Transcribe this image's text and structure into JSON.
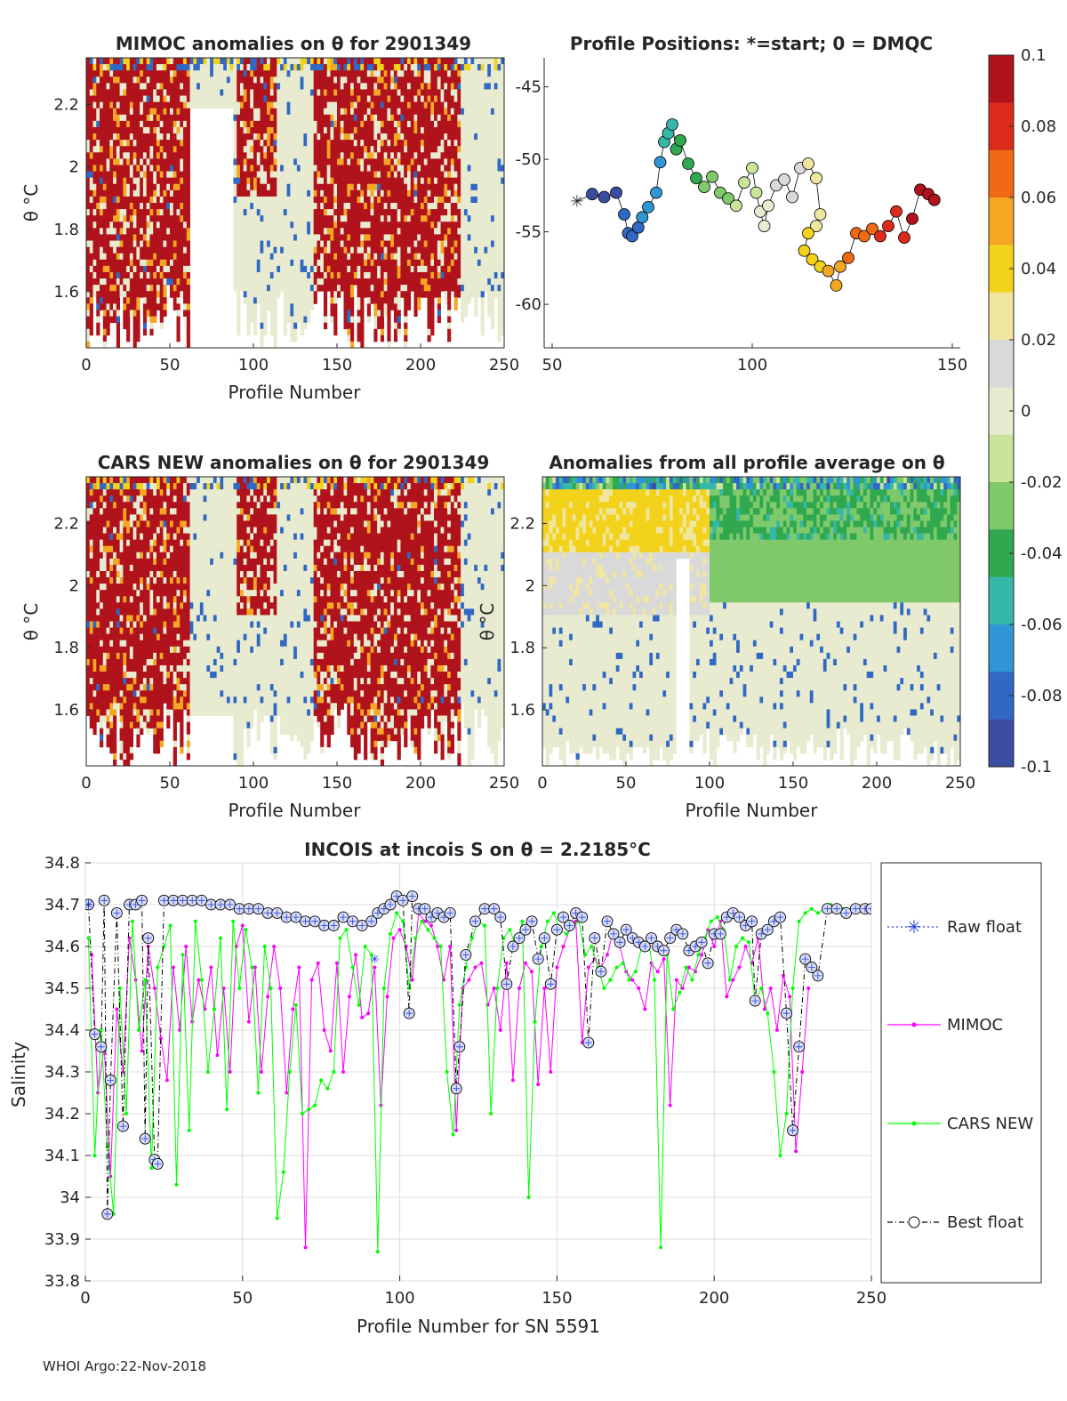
{
  "colors": {
    "background": "#ffffff",
    "axis": "#262626",
    "grid": "#dcdcdc",
    "raw_float": "#1f3fe0",
    "mimoc": "#ff00ff",
    "cars_new": "#00ff00",
    "best_float": "#000000",
    "colormap": [
      "#3b4da0",
      "#3068c4",
      "#2f95d4",
      "#35b8a8",
      "#2fa84f",
      "#7fc96a",
      "#cbe49b",
      "#e8ebd0",
      "#d9d9d9",
      "#f0e6a0",
      "#f3d21c",
      "#f5a623",
      "#ef6a12",
      "#dc2b1b",
      "#b0131b"
    ]
  },
  "footer": "WHOI Argo:22-Nov-2018",
  "chart_data": [
    {
      "id": "mimoc",
      "type": "heatmap",
      "title": "MIMOC anomalies on θ  for 2901349",
      "xlabel": "Profile Number",
      "ylabel": "θ °C",
      "xlim": [
        0,
        250
      ],
      "ylim": [
        1.42,
        2.35
      ],
      "xticks": [
        "0",
        "50",
        "100",
        "150",
        "200",
        "250"
      ],
      "yticks": [
        "1.6",
        "1.8",
        "2",
        "2.2"
      ],
      "ytick_values": [
        1.6,
        1.8,
        2.0,
        2.2
      ],
      "clim": [
        -0.1,
        0.1
      ]
    },
    {
      "id": "positions",
      "type": "scatter",
      "title": "Profile Positions: *=start; 0 = DMQC",
      "xlim": [
        48,
        152
      ],
      "ylim": [
        -63,
        -43
      ],
      "xticks": [
        "50",
        "100",
        "150"
      ],
      "xtick_values": [
        50,
        100,
        150
      ],
      "yticks": [
        "-45",
        "-50",
        "-55",
        "-60"
      ],
      "ytick_values": [
        -45,
        -50,
        -55,
        -60
      ],
      "track_lon": [
        56.2,
        60,
        63,
        66,
        68,
        69,
        70,
        71.5,
        72.5,
        74,
        76,
        77,
        78,
        79,
        80,
        81,
        82,
        84,
        86,
        88,
        90,
        92,
        94,
        96,
        98,
        100,
        101,
        102,
        103,
        104,
        106,
        108,
        110,
        112,
        114,
        116,
        117,
        116,
        114,
        113,
        115,
        117,
        119,
        121,
        122,
        124,
        126,
        128,
        130,
        132,
        134,
        136,
        138,
        140,
        142,
        144,
        145.5
      ],
      "track_lat": [
        -52.9,
        -52.4,
        -52.6,
        -52.3,
        -53.8,
        -55.1,
        -55.3,
        -54.7,
        -54,
        -53.3,
        -52.3,
        -50.2,
        -48.8,
        -48.2,
        -47.6,
        -49.3,
        -48.7,
        -50.3,
        -51.3,
        -51.9,
        -51.2,
        -52.3,
        -52.7,
        -53.2,
        -51.6,
        -50.6,
        -52.3,
        -53.6,
        -54.6,
        -53.2,
        -51.8,
        -51.4,
        -52.6,
        -50.6,
        -50.3,
        -51.3,
        -53.8,
        -54.6,
        -55.1,
        -56.3,
        -56.9,
        -57.4,
        -57.7,
        -58.7,
        -57.4,
        -56.8,
        -55.1,
        -55.3,
        -54.8,
        -55.3,
        -54.6,
        -53.6,
        -55.4,
        -54.1,
        -52.1,
        -52.4,
        -52.8
      ]
    },
    {
      "id": "cars",
      "type": "heatmap",
      "title": "CARS NEW anomalies on θ for 2901349",
      "xlabel": "Profile Number",
      "ylabel": "θ °C",
      "xlim": [
        0,
        250
      ],
      "ylim": [
        1.42,
        2.35
      ],
      "xticks": [
        "0",
        "50",
        "100",
        "150",
        "200",
        "250"
      ],
      "yticks": [
        "1.6",
        "1.8",
        "2",
        "2.2"
      ],
      "ytick_values": [
        1.6,
        1.8,
        2.0,
        2.2
      ]
    },
    {
      "id": "average",
      "type": "heatmap",
      "title": "Anomalies from all profile average on θ",
      "xlabel": "Profile Number",
      "ylabel": "θ °C",
      "xlim": [
        0,
        250
      ],
      "ylim": [
        1.42,
        2.35
      ],
      "xticks": [
        "0",
        "50",
        "100",
        "150",
        "200",
        "250"
      ],
      "yticks": [
        "1.6",
        "1.8",
        "2",
        "2.2"
      ],
      "ytick_values": [
        1.6,
        1.8,
        2.0,
        2.2
      ]
    },
    {
      "id": "colorbar",
      "type": "colorbar",
      "ticks": [
        "0.1",
        "0.08",
        "0.06",
        "0.04",
        "0.02",
        "0",
        "-0.02",
        "-0.04",
        "-0.06",
        "-0.08",
        "-0.1"
      ],
      "tick_values": [
        0.1,
        0.08,
        0.06,
        0.04,
        0.02,
        0,
        -0.02,
        -0.04,
        -0.06,
        -0.08,
        -0.1
      ],
      "clim": [
        -0.1,
        0.1
      ]
    },
    {
      "id": "salinity",
      "type": "line",
      "title": "INCOIS at incois S on θ = 2.2185°C",
      "xlabel": "Profile Number for SN 5591",
      "ylabel": "Salinity",
      "xlim": [
        0,
        250
      ],
      "ylim": [
        33.8,
        34.8
      ],
      "xticks": [
        "0",
        "50",
        "100",
        "150",
        "200",
        "250"
      ],
      "xtick_values": [
        0,
        50,
        100,
        150,
        200,
        250
      ],
      "yticks": [
        "33.8",
        "33.9",
        "34",
        "34.1",
        "34.2",
        "34.3",
        "34.4",
        "34.5",
        "34.6",
        "34.7",
        "34.8"
      ],
      "ytick_values": [
        33.8,
        33.9,
        34.0,
        34.1,
        34.2,
        34.3,
        34.4,
        34.5,
        34.6,
        34.7,
        34.8
      ],
      "legend": [
        "Raw float",
        "MIMOC",
        "CARS NEW",
        "Best float"
      ],
      "series": [
        {
          "name": "Best float",
          "x": [
            1,
            3,
            5,
            6,
            7,
            8,
            10,
            12,
            14,
            16,
            18,
            19,
            20,
            22,
            23,
            25,
            28,
            31,
            34,
            37,
            40,
            43,
            46,
            49,
            52,
            55,
            58,
            61,
            64,
            67,
            70,
            73,
            76,
            79,
            82,
            85,
            88,
            91,
            93,
            95,
            97,
            99,
            101,
            103,
            104,
            106,
            108,
            110,
            112,
            114,
            116,
            118,
            119,
            121,
            124,
            127,
            130,
            132,
            134,
            136,
            138,
            140,
            142,
            144,
            146,
            148,
            150,
            152,
            154,
            156,
            158,
            160,
            162,
            164,
            166,
            168,
            170,
            172,
            174,
            176,
            178,
            180,
            182,
            184,
            186,
            188,
            190,
            192,
            194,
            196,
            198,
            200,
            202,
            204,
            206,
            208,
            210,
            212,
            213,
            215,
            217,
            219,
            221,
            223,
            225,
            227,
            229,
            231,
            233,
            236,
            239,
            242,
            245,
            248,
            250
          ],
          "y": [
            34.7,
            34.39,
            34.36,
            34.71,
            33.96,
            34.28,
            34.68,
            34.17,
            34.7,
            34.7,
            34.71,
            34.14,
            34.62,
            34.09,
            34.08,
            34.71,
            34.71,
            34.71,
            34.71,
            34.71,
            34.7,
            34.7,
            34.7,
            34.69,
            34.69,
            34.69,
            34.68,
            34.68,
            34.67,
            34.67,
            34.66,
            34.66,
            34.65,
            34.65,
            34.67,
            34.66,
            34.65,
            34.66,
            34.68,
            34.69,
            34.7,
            34.72,
            34.71,
            34.44,
            34.72,
            34.69,
            34.69,
            34.67,
            34.68,
            34.67,
            34.68,
            34.26,
            34.36,
            34.58,
            34.66,
            34.69,
            34.69,
            34.67,
            34.51,
            34.6,
            34.62,
            34.64,
            34.66,
            34.57,
            34.62,
            34.51,
            34.64,
            34.67,
            34.65,
            34.68,
            34.67,
            34.37,
            34.62,
            34.54,
            34.66,
            34.63,
            34.61,
            34.64,
            34.62,
            34.61,
            34.6,
            34.62,
            34.6,
            34.59,
            34.62,
            34.64,
            34.63,
            34.59,
            34.6,
            34.61,
            34.56,
            34.63,
            34.63,
            34.67,
            34.68,
            34.67,
            34.65,
            34.66,
            34.47,
            34.63,
            34.64,
            34.66,
            34.67,
            34.44,
            34.16,
            34.36,
            34.57,
            34.55,
            34.53,
            34.69,
            34.69,
            34.68,
            34.69,
            34.69,
            34.69
          ]
        },
        {
          "name": "MIMOC",
          "x": [
            2,
            4,
            6,
            8,
            10,
            12,
            14,
            16,
            18,
            20,
            22,
            24,
            26,
            28,
            30,
            32,
            34,
            36,
            38,
            40,
            42,
            44,
            46,
            48,
            50,
            52,
            54,
            56,
            58,
            60,
            62,
            64,
            66,
            68,
            70,
            72,
            74,
            76,
            78,
            80,
            82,
            84,
            86,
            88,
            90,
            92,
            94,
            96,
            98,
            100,
            102,
            104,
            106,
            108,
            110,
            112,
            114,
            116,
            118,
            120,
            122,
            124,
            126,
            128,
            130,
            132,
            134,
            136,
            138,
            140,
            142,
            144,
            146,
            148,
            150,
            152,
            154,
            156,
            158,
            160,
            162,
            164,
            166,
            168,
            170,
            172,
            174,
            176,
            178,
            180,
            182,
            184,
            186,
            188,
            190,
            192,
            194,
            196,
            198,
            200,
            202,
            204,
            206,
            208,
            210,
            212,
            214,
            216,
            218,
            220,
            222,
            224,
            226,
            228,
            230
          ],
          "y": [
            34.58,
            34.25,
            34.36,
            34.05,
            34.45,
            34.3,
            34.62,
            34.52,
            34.35,
            34.6,
            34.5,
            34.38,
            34.28,
            34.55,
            34.4,
            34.6,
            34.42,
            34.52,
            34.45,
            34.55,
            34.34,
            34.5,
            34.3,
            34.6,
            34.65,
            34.42,
            34.55,
            34.3,
            34.48,
            34.6,
            34.5,
            34.25,
            34.45,
            34.55,
            33.88,
            34.52,
            34.56,
            34.4,
            34.35,
            34.56,
            34.3,
            34.48,
            34.58,
            34.43,
            34.44,
            34.55,
            34.22,
            34.48,
            34.62,
            34.64,
            34.6,
            34.52,
            34.68,
            34.66,
            34.65,
            34.6,
            34.52,
            34.6,
            34.16,
            34.5,
            34.52,
            34.55,
            34.56,
            34.46,
            34.5,
            34.4,
            34.56,
            34.28,
            34.5,
            34.56,
            34.54,
            34.27,
            34.5,
            34.3,
            34.55,
            34.6,
            34.64,
            34.66,
            34.37,
            34.55,
            34.57,
            34.55,
            34.58,
            34.64,
            34.6,
            34.54,
            34.52,
            34.5,
            34.45,
            34.56,
            34.54,
            34.57,
            34.22,
            34.52,
            34.5,
            34.55,
            34.54,
            34.58,
            34.64,
            34.6,
            34.66,
            34.48,
            34.52,
            34.55,
            34.6,
            34.56,
            34.62,
            34.45,
            34.5,
            34.4,
            34.53,
            34.48,
            34.11,
            34.3,
            34.5
          ]
        },
        {
          "name": "CARS NEW",
          "x": [
            1,
            3,
            5,
            7,
            9,
            11,
            13,
            15,
            17,
            19,
            21,
            23,
            25,
            27,
            29,
            31,
            33,
            35,
            37,
            39,
            41,
            43,
            45,
            47,
            49,
            51,
            53,
            55,
            57,
            59,
            61,
            63,
            65,
            67,
            69,
            71,
            73,
            75,
            77,
            79,
            81,
            83,
            85,
            87,
            89,
            91,
            93,
            95,
            97,
            99,
            101,
            103,
            105,
            107,
            109,
            111,
            113,
            115,
            117,
            119,
            121,
            123,
            125,
            127,
            129,
            131,
            133,
            135,
            137,
            139,
            141,
            143,
            145,
            147,
            149,
            151,
            153,
            155,
            157,
            159,
            161,
            163,
            165,
            167,
            169,
            171,
            173,
            175,
            177,
            179,
            181,
            183,
            185,
            187,
            189,
            191,
            193,
            195,
            197,
            199,
            201,
            203,
            205,
            207,
            209,
            211,
            213,
            215,
            217,
            219,
            221,
            223,
            225,
            227,
            229,
            231,
            233,
            235,
            237,
            239,
            241,
            243,
            245,
            247,
            249
          ],
          "y": [
            34.62,
            34.1,
            34.4,
            34.12,
            33.96,
            34.5,
            34.2,
            34.66,
            34.4,
            34.52,
            34.07,
            34.55,
            34.6,
            34.65,
            34.03,
            34.58,
            34.16,
            34.66,
            34.52,
            34.3,
            34.45,
            34.62,
            34.21,
            34.66,
            34.5,
            34.64,
            34.55,
            34.25,
            34.6,
            34.5,
            33.95,
            34.06,
            34.3,
            34.46,
            34.2,
            34.21,
            34.22,
            34.28,
            34.26,
            34.3,
            34.62,
            34.64,
            34.55,
            34.46,
            34.6,
            34.58,
            33.87,
            34.5,
            34.63,
            34.68,
            34.66,
            34.5,
            34.62,
            34.66,
            34.64,
            34.62,
            34.6,
            34.3,
            34.15,
            34.46,
            34.55,
            34.62,
            34.66,
            34.65,
            34.2,
            34.5,
            34.62,
            34.64,
            34.6,
            34.66,
            34.0,
            34.42,
            34.6,
            34.66,
            34.68,
            34.64,
            34.63,
            34.65,
            34.66,
            34.58,
            34.6,
            34.55,
            34.5,
            34.52,
            34.55,
            34.56,
            34.52,
            34.54,
            34.6,
            34.62,
            34.52,
            33.88,
            34.58,
            34.45,
            34.49,
            34.55,
            34.52,
            34.58,
            34.62,
            34.66,
            34.67,
            34.64,
            34.52,
            34.6,
            34.62,
            34.61,
            34.47,
            34.5,
            34.44,
            34.3,
            34.1,
            34.2,
            34.5,
            34.66,
            34.68,
            34.69,
            34.68,
            34.69,
            34.7,
            34.69,
            34.69,
            34.68,
            34.69,
            34.69,
            34.69
          ]
        },
        {
          "name": "Raw float",
          "x": [
            1,
            92
          ],
          "y": [
            34.7,
            34.57
          ]
        }
      ]
    }
  ]
}
